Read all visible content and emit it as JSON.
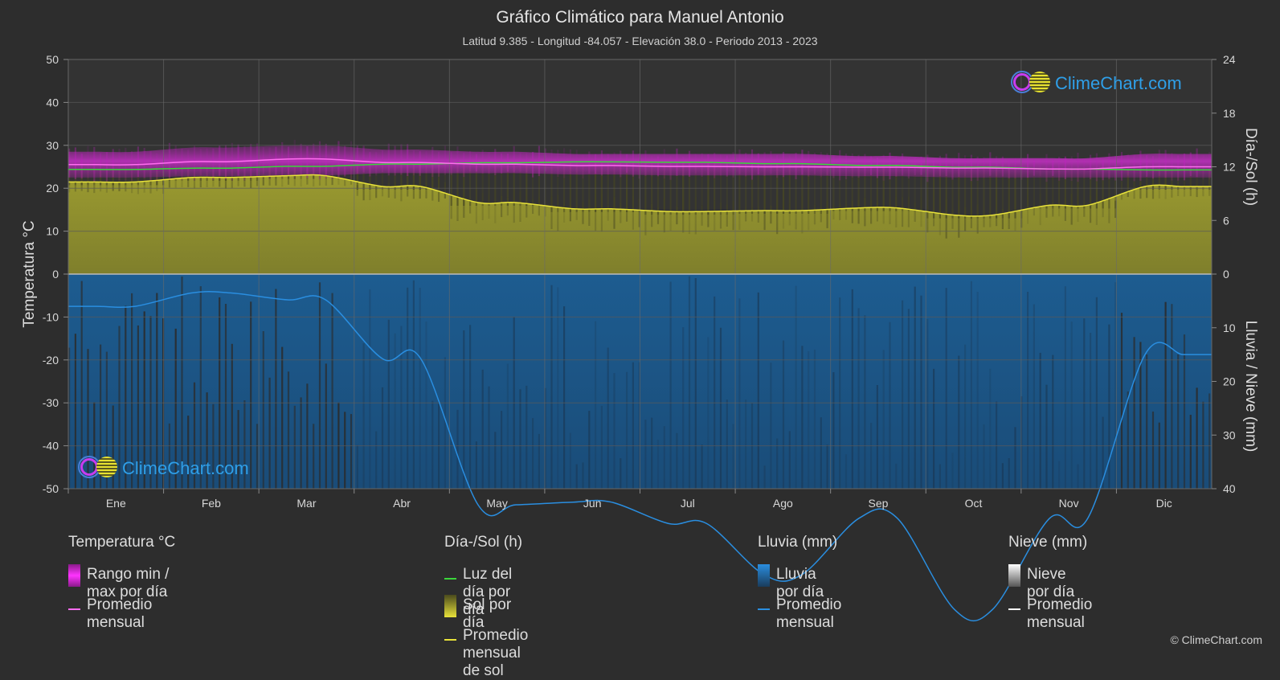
{
  "title": "Gráfico Climático para Manuel Antonio",
  "subtitle": "Latitud 9.385 - Longitud -84.057 - Elevación 38.0 - Periodo 2013 - 2023",
  "copyright": "© ClimeChart.com",
  "logo_text": "ClimeChart.com",
  "chart_data": {
    "type": "area",
    "months": [
      "Ene",
      "Feb",
      "Mar",
      "Abr",
      "May",
      "Jun",
      "Jul",
      "Ago",
      "Sep",
      "Oct",
      "Nov",
      "Dic"
    ],
    "y_left": {
      "label": "Temperatura °C",
      "range": [
        -50,
        50
      ],
      "ticks": [
        50,
        40,
        30,
        20,
        10,
        0,
        -10,
        -20,
        -30,
        -40,
        -50
      ]
    },
    "y_right_top": {
      "label": "Día-/Sol (h)",
      "range": [
        0,
        24
      ],
      "ticks": [
        24,
        18,
        12,
        6,
        0
      ]
    },
    "y_right_bottom": {
      "label": "Lluvia / Nieve (mm)",
      "range": [
        0,
        40
      ],
      "ticks": [
        0,
        10,
        20,
        30,
        40
      ]
    },
    "grid": true,
    "series": [
      {
        "name": "Promedio mensual",
        "group": "Temperatura °C",
        "unit": "°C",
        "color": "#ff6cf0",
        "values": [
          25.5,
          26.2,
          26.8,
          26.0,
          25.6,
          25.3,
          25.1,
          25.0,
          24.9,
          24.7,
          24.5,
          25.0
        ]
      },
      {
        "name": "Rango min / max por día",
        "group": "Temperatura °C",
        "unit": "°C",
        "color": "#cc22cc",
        "min": [
          22.5,
          22.8,
          23.0,
          23.5,
          23.5,
          23.2,
          23.0,
          23.0,
          22.8,
          22.5,
          22.5,
          22.5
        ],
        "max": [
          28.5,
          29.5,
          30.0,
          29.0,
          28.5,
          28.0,
          28.0,
          28.0,
          27.5,
          27.0,
          27.0,
          28.0
        ]
      },
      {
        "name": "Luz del día por día",
        "group": "Día-/Sol (h)",
        "unit": "h",
        "color": "#3bd63b",
        "values": [
          11.7,
          11.85,
          12.05,
          12.3,
          12.45,
          12.55,
          12.5,
          12.35,
          12.15,
          11.95,
          11.75,
          11.65
        ]
      },
      {
        "name": "Promedio mensual de sol",
        "group": "Día-/Sol (h)",
        "unit": "h",
        "color": "#e8e23a",
        "values": [
          10.3,
          10.8,
          11.0,
          9.8,
          8.0,
          7.3,
          7.0,
          7.1,
          7.4,
          6.6,
          7.7,
          9.8
        ]
      },
      {
        "name": "Promedio mensual",
        "group": "Lluvia (mm)",
        "unit": "mm",
        "color": "#2a8ee0",
        "values": [
          6.0,
          3.5,
          4.8,
          15.8,
          43.0,
          42.5,
          46.5,
          56.0,
          45.5,
          62.5,
          45.5,
          15.0
        ]
      }
    ]
  },
  "legend": {
    "temperature": {
      "header": "Temperatura °C",
      "items": [
        "Rango min / max por día",
        "Promedio mensual"
      ]
    },
    "sun": {
      "header": "Día-/Sol (h)",
      "items": [
        "Luz del día por día",
        "Sol por día",
        "Promedio mensual de sol"
      ]
    },
    "rain": {
      "header": "Lluvia (mm)",
      "items": [
        "Lluvia por día",
        "Promedio mensual"
      ]
    },
    "snow": {
      "header": "Nieve (mm)",
      "items": [
        "Nieve por día",
        "Promedio mensual"
      ]
    }
  },
  "colors": {
    "background": "#2d2d2d",
    "temp_range": "#cc22cc",
    "temp_avg": "#ff6cf0",
    "daylight": "#3bd63b",
    "sun_fill": "#8a8a2a",
    "sun_avg": "#e8e23a",
    "rain_fill": "#1f5f95",
    "rain_avg": "#2a8ee0",
    "snow_avg": "#ffffff"
  }
}
